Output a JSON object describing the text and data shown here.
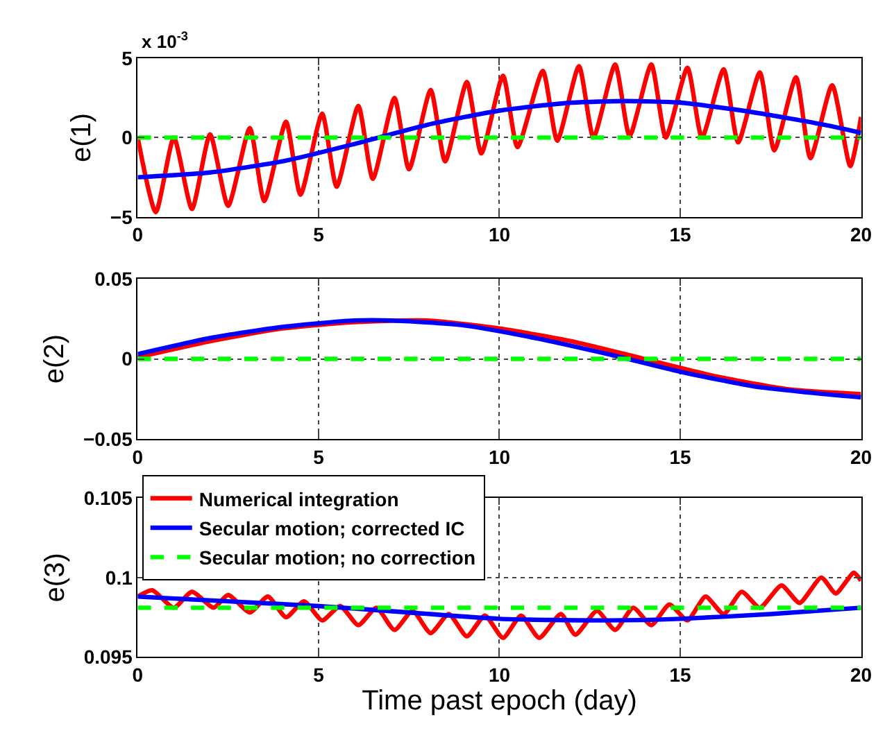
{
  "chart_data": [
    {
      "type": "line",
      "ylabel": "e(1)",
      "annotations": [
        "x 10$^{-3}$"
      ],
      "xlim": [
        0,
        20
      ],
      "xticks": [
        0,
        5,
        10,
        15,
        20
      ],
      "ylim": [
        -5,
        5
      ],
      "yticks": [
        -5,
        0,
        5
      ],
      "grid": true,
      "legend": false,
      "series": [
        {
          "color": "#ff0000",
          "line_style": "solid",
          "x": [
            0,
            0.5,
            1.0,
            1.5,
            2.0,
            2.5,
            3.1,
            3.5,
            4.1,
            4.5,
            5.1,
            5.5,
            6.1,
            6.5,
            7.1,
            7.5,
            8.1,
            8.5,
            9.1,
            9.5,
            10.1,
            10.5,
            11.2,
            11.6,
            12.2,
            12.6,
            13.2,
            13.6,
            14.2,
            14.6,
            15.2,
            15.6,
            16.2,
            16.6,
            17.2,
            17.6,
            18.2,
            18.6,
            19.2,
            19.7,
            20
          ],
          "values": [
            0,
            -4.7,
            0.0,
            -4.5,
            0.2,
            -4.3,
            0.6,
            -4.0,
            1.0,
            -3.6,
            1.5,
            -3.1,
            2.0,
            -2.6,
            2.5,
            -2.0,
            3.0,
            -1.5,
            3.5,
            -1.0,
            3.9,
            -0.6,
            4.2,
            -0.2,
            4.5,
            0.0,
            4.6,
            0.1,
            4.6,
            0.0,
            4.4,
            0.0,
            4.3,
            -0.3,
            4.1,
            -0.8,
            3.8,
            -1.3,
            3.3,
            -1.8,
            1.3
          ]
        },
        {
          "color": "#0000ff",
          "line_style": "solid",
          "x": [
            0,
            2,
            4,
            6,
            8,
            10,
            12,
            13.5,
            15,
            17,
            19,
            20
          ],
          "values": [
            -2.5,
            -2.2,
            -1.5,
            -0.4,
            0.8,
            1.7,
            2.2,
            2.3,
            2.2,
            1.6,
            0.8,
            0.3
          ]
        },
        {
          "color": "#00ff00",
          "line_style": "dashed",
          "x": [
            0,
            20
          ],
          "values": [
            0,
            0
          ]
        }
      ]
    },
    {
      "type": "line",
      "ylabel": "e(2)",
      "xlim": [
        0,
        20
      ],
      "xticks": [
        0,
        5,
        10,
        15,
        20
      ],
      "ylim": [
        -0.05,
        0.05
      ],
      "yticks": [
        -0.05,
        0,
        0.05
      ],
      "grid": true,
      "legend": false,
      "series": [
        {
          "color": "#ff0000",
          "line_style": "solid",
          "x": [
            0,
            2,
            4,
            6,
            8,
            10,
            12,
            14,
            16,
            18,
            20
          ],
          "values": [
            0.001,
            0.011,
            0.019,
            0.023,
            0.024,
            0.019,
            0.011,
            0.0,
            -0.011,
            -0.019,
            -0.022
          ]
        },
        {
          "color": "#0000ff",
          "line_style": "solid",
          "x": [
            0,
            2,
            4,
            6,
            7,
            9,
            11,
            13,
            15,
            17,
            19,
            20
          ],
          "values": [
            0.003,
            0.013,
            0.02,
            0.024,
            0.024,
            0.021,
            0.013,
            0.003,
            -0.008,
            -0.017,
            -0.022,
            -0.024
          ]
        },
        {
          "color": "#00ff00",
          "line_style": "dashed",
          "x": [
            0,
            20
          ],
          "values": [
            0,
            0
          ]
        }
      ]
    },
    {
      "type": "line",
      "ylabel": "e(3)",
      "xlabel": "Time past epoch (day)",
      "xlim": [
        0,
        20
      ],
      "xticks": [
        0,
        5,
        10,
        15,
        20
      ],
      "ylim": [
        0.095,
        0.105
      ],
      "yticks": [
        0.095,
        0.1,
        0.105
      ],
      "grid": true,
      "legend": "top left",
      "series": [
        {
          "name": "Numerical integration",
          "color": "#ff0000",
          "line_style": "solid",
          "x": [
            0,
            0.4,
            1.0,
            1.5,
            2.1,
            2.5,
            3.1,
            3.6,
            4.1,
            4.6,
            5.1,
            5.6,
            6.1,
            6.6,
            7.1,
            7.6,
            8.1,
            8.6,
            9.1,
            9.6,
            10.1,
            10.6,
            11.1,
            11.7,
            12.1,
            12.7,
            13.2,
            13.7,
            14.2,
            14.7,
            15.2,
            15.7,
            16.2,
            16.7,
            17.2,
            17.8,
            18.3,
            18.9,
            19.3,
            19.8,
            20
          ],
          "values": [
            0.0988,
            0.0992,
            0.0981,
            0.0991,
            0.0981,
            0.0989,
            0.0978,
            0.0988,
            0.0975,
            0.0985,
            0.0973,
            0.0982,
            0.097,
            0.0981,
            0.0967,
            0.0979,
            0.0965,
            0.0977,
            0.0963,
            0.0976,
            0.0962,
            0.0976,
            0.0962,
            0.0977,
            0.0964,
            0.0979,
            0.0967,
            0.0981,
            0.097,
            0.0983,
            0.0973,
            0.0988,
            0.0977,
            0.0991,
            0.0981,
            0.0995,
            0.0984,
            0.1,
            0.099,
            0.1003,
            0.0998
          ]
        },
        {
          "name": "Secular motion; corrected IC",
          "color": "#0000ff",
          "line_style": "solid",
          "x": [
            0,
            2.5,
            5,
            7.5,
            10,
            13,
            15,
            17.5,
            20
          ],
          "values": [
            0.0988,
            0.0985,
            0.0982,
            0.0978,
            0.0974,
            0.0973,
            0.0974,
            0.0977,
            0.0981
          ]
        },
        {
          "name": "Secular motion; no correction",
          "color": "#00ff00",
          "line_style": "dashed",
          "x": [
            0,
            20
          ],
          "values": [
            0.0981,
            0.0981
          ]
        }
      ]
    }
  ]
}
